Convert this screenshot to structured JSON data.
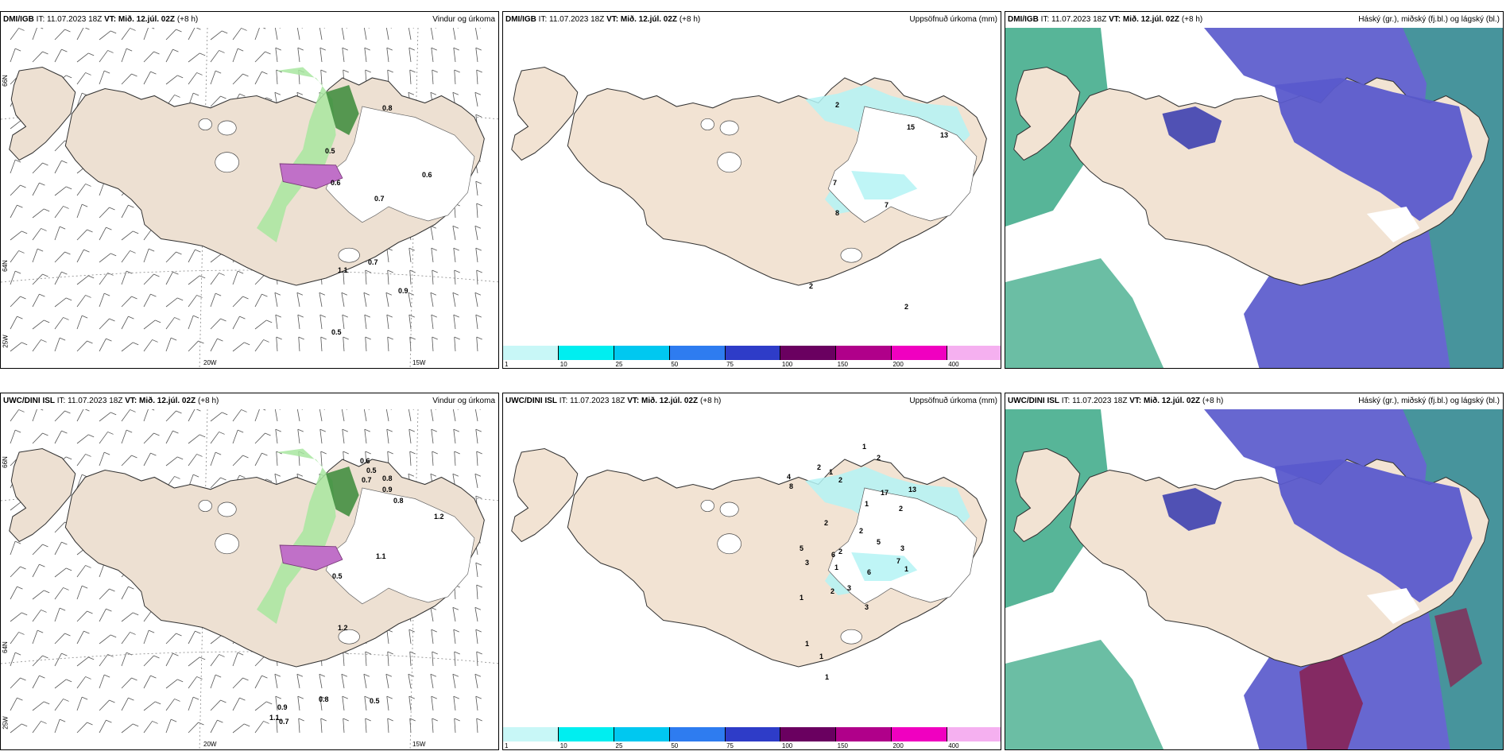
{
  "panels": [
    {
      "model": "DMI/IGB",
      "it_prefix": "IT:",
      "it": "11.07.2023 18Z",
      "vt_prefix": "VT:",
      "vt": "Mið. 12.júl. 02Z",
      "lead": "(+8 h)",
      "title": "Vindur og úrkoma",
      "type": "wind",
      "labels": [
        "0.8",
        "0.5",
        "0.6",
        "0.7",
        "0.7",
        "1.1",
        "0.9",
        "0.5",
        "0.6"
      ]
    },
    {
      "model": "DMI/IGB",
      "it_prefix": "IT:",
      "it": "11.07.2023 18Z",
      "vt_prefix": "VT:",
      "vt": "Mið. 12.júl. 02Z",
      "lead": "(+8 h)",
      "title": "Uppsöfnuð úrkoma (mm)",
      "type": "precip",
      "labels": [
        "2",
        "15",
        "13",
        "7",
        "7",
        "8",
        "2",
        "2"
      ]
    },
    {
      "model": "DMI/IGB",
      "it_prefix": "IT:",
      "it": "11.07.2023 18Z",
      "vt_prefix": "VT:",
      "vt": "Mið. 12.júl. 02Z",
      "lead": "(+8 h)",
      "title": "Háský (gr.), miðský (fj.bl.) og lágský (bl.)",
      "type": "cloud"
    },
    {
      "model": "UWC/DINI ISL",
      "it_prefix": "IT:",
      "it": "11.07.2023 18Z",
      "vt_prefix": "VT:",
      "vt": "Mið. 12.júl. 02Z",
      "lead": "(+8 h)",
      "title": "Vindur og úrkoma",
      "type": "wind",
      "labels": [
        "0.6",
        "0.5",
        "0.7",
        "0.8",
        "0.9",
        "0.8",
        "1.2",
        "1.1",
        "0.5",
        "1.2",
        "0.9",
        "0.8",
        "0.5",
        "1.1",
        "0.7"
      ]
    },
    {
      "model": "UWC/DINI ISL",
      "it_prefix": "IT:",
      "it": "11.07.2023 18Z",
      "vt_prefix": "VT:",
      "vt": "Mið. 12.júl. 02Z",
      "lead": "(+8 h)",
      "title": "Uppsöfnuð úrkoma (mm)",
      "type": "precip",
      "labels": [
        "1",
        "2",
        "2",
        "1",
        "2",
        "4",
        "8",
        "17",
        "13",
        "2",
        "1",
        "2",
        "2",
        "5",
        "3",
        "5",
        "2",
        "6",
        "1",
        "6",
        "7",
        "3",
        "1",
        "2",
        "3",
        "1",
        "3",
        "1",
        "1",
        "1"
      ]
    },
    {
      "model": "UWC/DINI ISL",
      "it_prefix": "IT:",
      "it": "11.07.2023 18Z",
      "vt_prefix": "VT:",
      "vt": "Mið. 12.júl. 02Z",
      "lead": "(+8 h)",
      "title": "Háský (gr.), miðský (fj.bl.) og lágský (bl.)",
      "type": "cloud"
    }
  ],
  "axes": {
    "lon_ticks": [
      "20W",
      "15W"
    ],
    "lat_ticks": [
      "66N",
      "64N"
    ],
    "sw_label": "25W"
  },
  "colorbar": {
    "ticks": [
      "1",
      "10",
      "25",
      "50",
      "75",
      "100",
      "150",
      "200",
      "400"
    ],
    "colors": [
      "#c8f7f7",
      "#00eef0",
      "#00c8f0",
      "#2e7cf0",
      "#2e3cc8",
      "#6a0060",
      "#b0008a",
      "#f000c0",
      "#f5b0f0"
    ]
  },
  "colors": {
    "land": "#f2e3d3",
    "land_wind": "#ede0d2",
    "green": "#a8e6a0",
    "purple": "#c070c8",
    "cyan": "#b4f3f5",
    "high_cloud": "#3aa886",
    "mid_cloud": "#5a5acc",
    "low_cloud": "#3e40b0"
  }
}
